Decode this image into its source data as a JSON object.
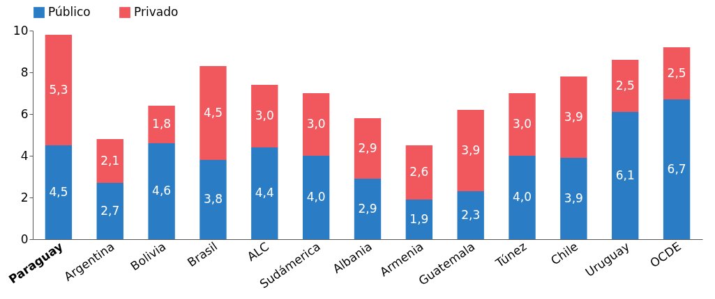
{
  "chart_data": {
    "type": "bar",
    "stacked": true,
    "categories": [
      "Paraguay",
      "Argentina",
      "Bolivia",
      "Brasil",
      "ALC",
      "Sudámerica",
      "Albania",
      "Armenia",
      "Guatemala",
      "Túnez",
      "Chile",
      "Uruguay",
      "OCDE"
    ],
    "series": [
      {
        "name": "Público",
        "color": "#2a7dc4",
        "values": [
          4.5,
          2.7,
          4.6,
          3.8,
          4.4,
          4.0,
          2.9,
          1.9,
          2.3,
          4.0,
          3.9,
          6.1,
          6.7
        ],
        "value_labels": [
          "4,5",
          "2,7",
          "4,6",
          "3,8",
          "4,4",
          "4,0",
          "2,9",
          "1,9",
          "2,3",
          "4,0",
          "3,9",
          "6,1",
          "6,7"
        ]
      },
      {
        "name": "Privado",
        "color": "#f0585e",
        "values": [
          5.3,
          2.1,
          1.8,
          4.5,
          3.0,
          3.0,
          2.9,
          2.6,
          3.9,
          3.0,
          3.9,
          2.5,
          2.5
        ],
        "value_labels": [
          "5,3",
          "2,1",
          "1,8",
          "4,5",
          "3,0",
          "3,0",
          "2,9",
          "2,6",
          "3,9",
          "3,0",
          "3,9",
          "2,5",
          "2,5"
        ]
      }
    ],
    "ylim": [
      0,
      10
    ],
    "yticks": [
      0,
      2,
      4,
      6,
      8,
      10
    ],
    "legend": "top"
  }
}
